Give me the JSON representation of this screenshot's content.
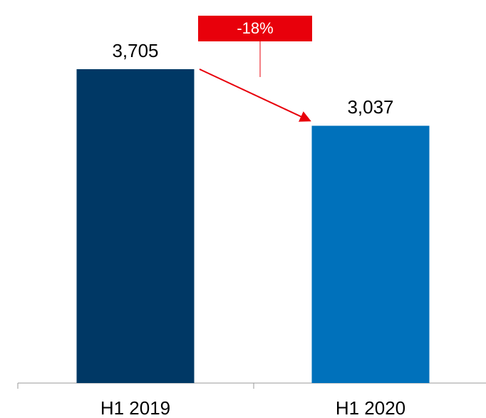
{
  "chart_data": {
    "type": "bar",
    "categories": [
      "H1 2019",
      "H1 2020"
    ],
    "values": [
      3705,
      3037
    ],
    "value_labels": [
      "3,705",
      "3,037"
    ],
    "colors": [
      "#003865",
      "#0071bb"
    ],
    "annotation": "-18%",
    "annotation_color": "#e8000b"
  }
}
